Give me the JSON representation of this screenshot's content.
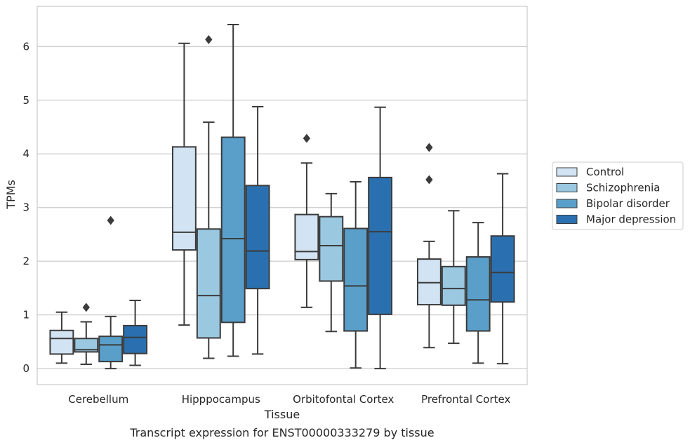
{
  "chart_data": {
    "type": "boxplot",
    "xlabel": "Tissue",
    "ylabel": "TPMs",
    "caption": "Transcript expression for ENST00000333279 by tissue",
    "ylim": [
      -0.3,
      6.75
    ],
    "yticks": [
      0,
      1,
      2,
      3,
      4,
      5,
      6
    ],
    "grid": "horizontal",
    "legend_placement": "right",
    "categories": [
      "Cerebellum",
      "Hipppocampus",
      "Orbitofontal Cortex",
      "Prefrontal Cortex"
    ],
    "series": [
      {
        "name": "Control",
        "color": "#d2e3f3",
        "boxes": [
          {
            "whisker_low": 0.1,
            "q1": 0.27,
            "median": 0.56,
            "q3": 0.71,
            "whisker_high": 1.05,
            "outliers": []
          },
          {
            "whisker_low": 0.81,
            "q1": 2.21,
            "median": 2.54,
            "q3": 4.13,
            "whisker_high": 6.06,
            "outliers": []
          },
          {
            "whisker_low": 1.14,
            "q1": 2.03,
            "median": 2.18,
            "q3": 2.87,
            "whisker_high": 3.83,
            "outliers": [
              4.29
            ]
          },
          {
            "whisker_low": 0.39,
            "q1": 1.19,
            "median": 1.6,
            "q3": 2.04,
            "whisker_high": 2.37,
            "outliers": [
              3.52,
              4.12
            ]
          }
        ]
      },
      {
        "name": "Schizophrenia",
        "color": "#9ac8e0",
        "boxes": [
          {
            "whisker_low": 0.08,
            "q1": 0.31,
            "median": 0.35,
            "q3": 0.56,
            "whisker_high": 0.87,
            "outliers": [
              1.14
            ]
          },
          {
            "whisker_low": 0.19,
            "q1": 0.57,
            "median": 1.36,
            "q3": 2.6,
            "whisker_high": 4.59,
            "outliers": [
              6.13
            ]
          },
          {
            "whisker_low": 0.69,
            "q1": 1.63,
            "median": 2.29,
            "q3": 2.83,
            "whisker_high": 3.26,
            "outliers": []
          },
          {
            "whisker_low": 0.47,
            "q1": 1.18,
            "median": 1.49,
            "q3": 1.9,
            "whisker_high": 2.94,
            "outliers": []
          }
        ]
      },
      {
        "name": "Bipolar disorder",
        "color": "#5a9fca",
        "boxes": [
          {
            "whisker_low": 0.0,
            "q1": 0.13,
            "median": 0.44,
            "q3": 0.6,
            "whisker_high": 0.97,
            "outliers": [
              2.76
            ]
          },
          {
            "whisker_low": 0.23,
            "q1": 0.86,
            "median": 2.42,
            "q3": 4.31,
            "whisker_high": 6.41,
            "outliers": []
          },
          {
            "whisker_low": 0.01,
            "q1": 0.7,
            "median": 1.54,
            "q3": 2.61,
            "whisker_high": 3.48,
            "outliers": []
          },
          {
            "whisker_low": 0.1,
            "q1": 0.7,
            "median": 1.28,
            "q3": 2.08,
            "whisker_high": 2.72,
            "outliers": []
          }
        ]
      },
      {
        "name": "Major depression",
        "color": "#2a70b0",
        "boxes": [
          {
            "whisker_low": 0.06,
            "q1": 0.28,
            "median": 0.58,
            "q3": 0.8,
            "whisker_high": 1.27,
            "outliers": []
          },
          {
            "whisker_low": 0.27,
            "q1": 1.49,
            "median": 2.19,
            "q3": 3.41,
            "whisker_high": 4.88,
            "outliers": []
          },
          {
            "whisker_low": 0.0,
            "q1": 1.01,
            "median": 2.55,
            "q3": 3.56,
            "whisker_high": 4.87,
            "outliers": []
          },
          {
            "whisker_low": 0.09,
            "q1": 1.24,
            "median": 1.79,
            "q3": 2.47,
            "whisker_high": 3.63,
            "outliers": []
          }
        ]
      }
    ]
  }
}
